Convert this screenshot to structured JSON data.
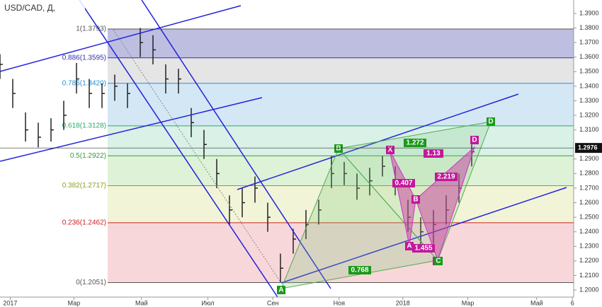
{
  "chart_data": {
    "type": "ohlc",
    "title": "USD/CAD, Д,",
    "x": [
      0,
      1,
      2,
      3,
      4,
      5,
      6,
      7,
      8,
      9,
      10,
      11,
      12,
      13,
      14,
      15,
      16,
      17,
      18,
      19,
      20,
      21,
      22,
      23,
      24,
      25,
      26,
      27,
      28,
      29,
      30,
      31,
      32,
      33,
      34,
      35,
      36,
      37
    ],
    "series": [
      {
        "name": "USD/CAD",
        "color": "#222",
        "high": [
          1.362,
          1.345,
          1.322,
          1.315,
          1.318,
          1.33,
          1.356,
          1.345,
          1.342,
          1.348,
          1.342,
          1.38,
          1.375,
          1.355,
          1.352,
          1.325,
          1.31,
          1.29,
          1.265,
          1.27,
          1.278,
          1.26,
          1.225,
          1.242,
          1.255,
          1.262,
          1.292,
          1.288,
          1.28,
          1.284,
          1.292,
          1.285,
          1.262,
          1.25,
          1.255,
          1.265,
          1.28,
          1.3
        ],
        "low": [
          1.345,
          1.325,
          1.302,
          1.298,
          1.302,
          1.31,
          1.335,
          1.325,
          1.325,
          1.33,
          1.325,
          1.36,
          1.355,
          1.335,
          1.335,
          1.305,
          1.29,
          1.27,
          1.245,
          1.25,
          1.26,
          1.24,
          1.205,
          1.225,
          1.235,
          1.245,
          1.27,
          1.272,
          1.262,
          1.265,
          1.278,
          1.265,
          1.24,
          1.228,
          1.232,
          1.245,
          1.26,
          1.285
        ],
        "close": [
          1.355,
          1.335,
          1.31,
          1.305,
          1.31,
          1.32,
          1.345,
          1.335,
          1.335,
          1.34,
          1.335,
          1.37,
          1.365,
          1.345,
          1.345,
          1.315,
          1.3,
          1.28,
          1.255,
          1.26,
          1.27,
          1.25,
          1.215,
          1.235,
          1.245,
          1.255,
          1.28,
          1.28,
          1.27,
          1.275,
          1.285,
          1.275,
          1.25,
          1.24,
          1.245,
          1.255,
          1.27,
          1.295
        ]
      }
    ],
    "xlim": [
      0,
      45
    ],
    "xticks": [
      {
        "value": 0.8,
        "label": "2017"
      },
      {
        "value": 5.8,
        "label": "Мар"
      },
      {
        "value": 11.1,
        "label": "Май"
      },
      {
        "value": 16.3,
        "label": "Июл"
      },
      {
        "value": 21.4,
        "label": "Сен"
      },
      {
        "value": 26.6,
        "label": "Ноя"
      },
      {
        "value": 31.6,
        "label": "2018"
      },
      {
        "value": 36.7,
        "label": "Мар"
      },
      {
        "value": 42.1,
        "label": "Май"
      },
      {
        "value": 44.9,
        "label": "6"
      }
    ],
    "ylim": [
      1.195,
      1.395
    ],
    "yticks": [
      {
        "value": 1.39,
        "label": "1.3900"
      },
      {
        "value": 1.38,
        "label": "1.3800"
      },
      {
        "value": 1.37,
        "label": "1.3700"
      },
      {
        "value": 1.36,
        "label": "1.3600"
      },
      {
        "value": 1.35,
        "label": "1.3500"
      },
      {
        "value": 1.34,
        "label": "1.3400"
      },
      {
        "value": 1.33,
        "label": "1.3300"
      },
      {
        "value": 1.32,
        "label": "1.3200"
      },
      {
        "value": 1.31,
        "label": "1.3100"
      },
      {
        "value": 1.29,
        "label": "1.2900"
      },
      {
        "value": 1.28,
        "label": "1.2800"
      },
      {
        "value": 1.27,
        "label": "1.2700"
      },
      {
        "value": 1.26,
        "label": "1.2600"
      },
      {
        "value": 1.25,
        "label": "1.2500"
      },
      {
        "value": 1.24,
        "label": "1.2400"
      },
      {
        "value": 1.23,
        "label": "1.2300"
      },
      {
        "value": 1.22,
        "label": "1.2200"
      },
      {
        "value": 1.21,
        "label": "1.2100"
      },
      {
        "value": 1.2,
        "label": "1.2000"
      }
    ],
    "last_price": 1.2976,
    "fib_levels": [
      {
        "value": 1.3793,
        "label": "1(1.3793)",
        "color": "#555",
        "fill": "#b3b3dc"
      },
      {
        "value": 1.3595,
        "label": "0.886(1.3595)",
        "color": "#3333aa",
        "fill": "#e0e0e0"
      },
      {
        "value": 1.342,
        "label": "0.786(1.3420)",
        "color": "#2a8fd0",
        "fill": "#cce3f2"
      },
      {
        "value": 1.3128,
        "label": "0.618(1.3128)",
        "color": "#2aa870",
        "fill": "#d2efe2"
      },
      {
        "value": 1.2922,
        "label": "0.5(1.2922)",
        "color": "#3a9a3a",
        "fill": "#d8f0d0"
      },
      {
        "value": 1.2717,
        "label": "0.382(1.2717)",
        "color": "#8aa020",
        "fill": "#eef2d0"
      },
      {
        "value": 1.2462,
        "label": "0.236(1.2462)",
        "color": "#cc2222",
        "fill": "#f6d0d4"
      },
      {
        "value": 1.2051,
        "label": "0(1.2051)",
        "color": "#555",
        "fill": "#f6d0d4"
      }
    ],
    "annotations": [
      "X",
      "A",
      "B",
      "C",
      "D",
      "0.407",
      "1.455",
      "2.219",
      "1.13",
      "A",
      "B",
      "C",
      "D",
      "1.272",
      "0.768"
    ]
  }
}
